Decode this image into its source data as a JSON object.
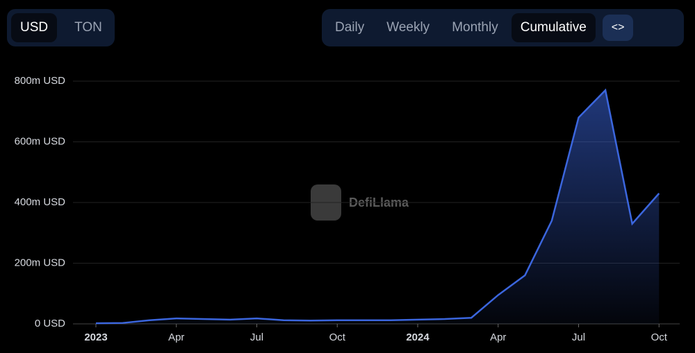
{
  "controls": {
    "currency": [
      "USD",
      "TON"
    ],
    "periods": [
      "Daily",
      "Weekly",
      "Monthly",
      "Cumulative"
    ],
    "embed": "<>"
  },
  "watermark": "DefiLlama",
  "chart_data": {
    "type": "area",
    "x": [
      "2023-01",
      "2023-02",
      "2023-03",
      "2023-04",
      "2023-05",
      "2023-06",
      "2023-07",
      "2023-08",
      "2023-09",
      "2023-10",
      "2023-11",
      "2023-12",
      "2024-01",
      "2024-02",
      "2024-03",
      "2024-04",
      "2024-05",
      "2024-06",
      "2024-07",
      "2024-08",
      "2024-09",
      "2024-10"
    ],
    "series": [
      {
        "name": "Cumulative",
        "color": "#3b66de",
        "values": [
          2000000,
          3000000,
          12000000,
          18000000,
          16000000,
          14000000,
          18000000,
          12000000,
          11000000,
          12000000,
          12000000,
          12000000,
          14000000,
          16000000,
          20000000,
          95000000,
          160000000,
          340000000,
          680000000,
          770000000,
          330000000,
          430000000
        ]
      }
    ],
    "ylim": [
      0,
      800000000
    ],
    "yticks": [
      {
        "value": 0,
        "label": "0 USD"
      },
      {
        "value": 200000000,
        "label": "200m USD"
      },
      {
        "value": 400000000,
        "label": "400m USD"
      },
      {
        "value": 600000000,
        "label": "600m USD"
      },
      {
        "value": 800000000,
        "label": "800m USD"
      }
    ],
    "xticks": [
      {
        "value": "2023-01",
        "label": "2023"
      },
      {
        "value": "2023-04",
        "label": "Apr"
      },
      {
        "value": "2023-07",
        "label": "Jul"
      },
      {
        "value": "2023-10",
        "label": "Oct"
      },
      {
        "value": "2024-01",
        "label": "2024"
      },
      {
        "value": "2024-04",
        "label": "Apr"
      },
      {
        "value": "2024-07",
        "label": "Jul"
      },
      {
        "value": "2024-10",
        "label": "Oct"
      }
    ],
    "grid": true
  }
}
